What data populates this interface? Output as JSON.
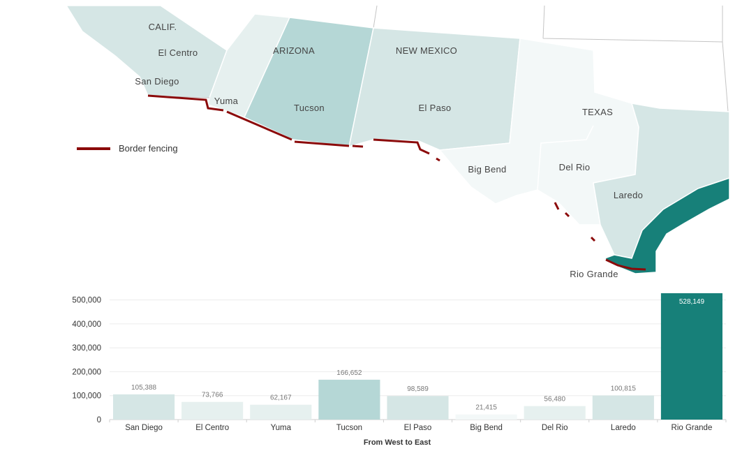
{
  "map": {
    "colors": {
      "california": "#d5e6e5",
      "yuma": "#e6f0ef",
      "arizona": "#b5d7d6",
      "new_mexico": "#d5e6e5",
      "texas": "#f3f8f8",
      "laredo": "#d5e6e5",
      "rio_grande": "#178079",
      "fence": "#8b0a0a",
      "border": "#ffffff",
      "grey_line": "#bcbcbc"
    },
    "labels": {
      "calif": "CALIF.",
      "arizona": "ARIZONA",
      "new_mexico": "NEW MEXICO",
      "texas": "TEXAS",
      "el_centro": "El Centro",
      "san_diego": "San Diego",
      "yuma": "Yuma",
      "tucson": "Tucson",
      "el_paso": "El Paso",
      "big_bend": "Big Bend",
      "del_rio": "Del Rio",
      "laredo": "Laredo",
      "rio_grande": "Rio Grande"
    }
  },
  "legend": {
    "label": "Border fencing"
  },
  "chart_data": {
    "type": "bar",
    "categories": [
      "San Diego",
      "El Centro",
      "Yuma",
      "Tucson",
      "El Paso",
      "Big Bend",
      "Del Rio",
      "Laredo",
      "Rio Grande"
    ],
    "values": [
      105388,
      73766,
      62167,
      166652,
      98589,
      21415,
      56480,
      100815,
      528149
    ],
    "value_labels": [
      "105,388",
      "73,766",
      "62,167",
      "166,652",
      "98,589",
      "21,415",
      "56,480",
      "100,815",
      "528,149"
    ],
    "bar_colors": [
      "#d5e6e5",
      "#e6f0ef",
      "#e6f0ef",
      "#b5d7d6",
      "#d5e6e5",
      "#f3f8f8",
      "#e6f0ef",
      "#d5e6e5",
      "#178079"
    ],
    "yticks": [
      0,
      100000,
      200000,
      300000,
      400000,
      500000
    ],
    "ytick_labels": [
      "0",
      "100,000",
      "200,000",
      "300,000",
      "400,000",
      "500,000"
    ],
    "ylim": [
      0,
      528149
    ],
    "xlabel": "From West to East",
    "grid": true
  }
}
